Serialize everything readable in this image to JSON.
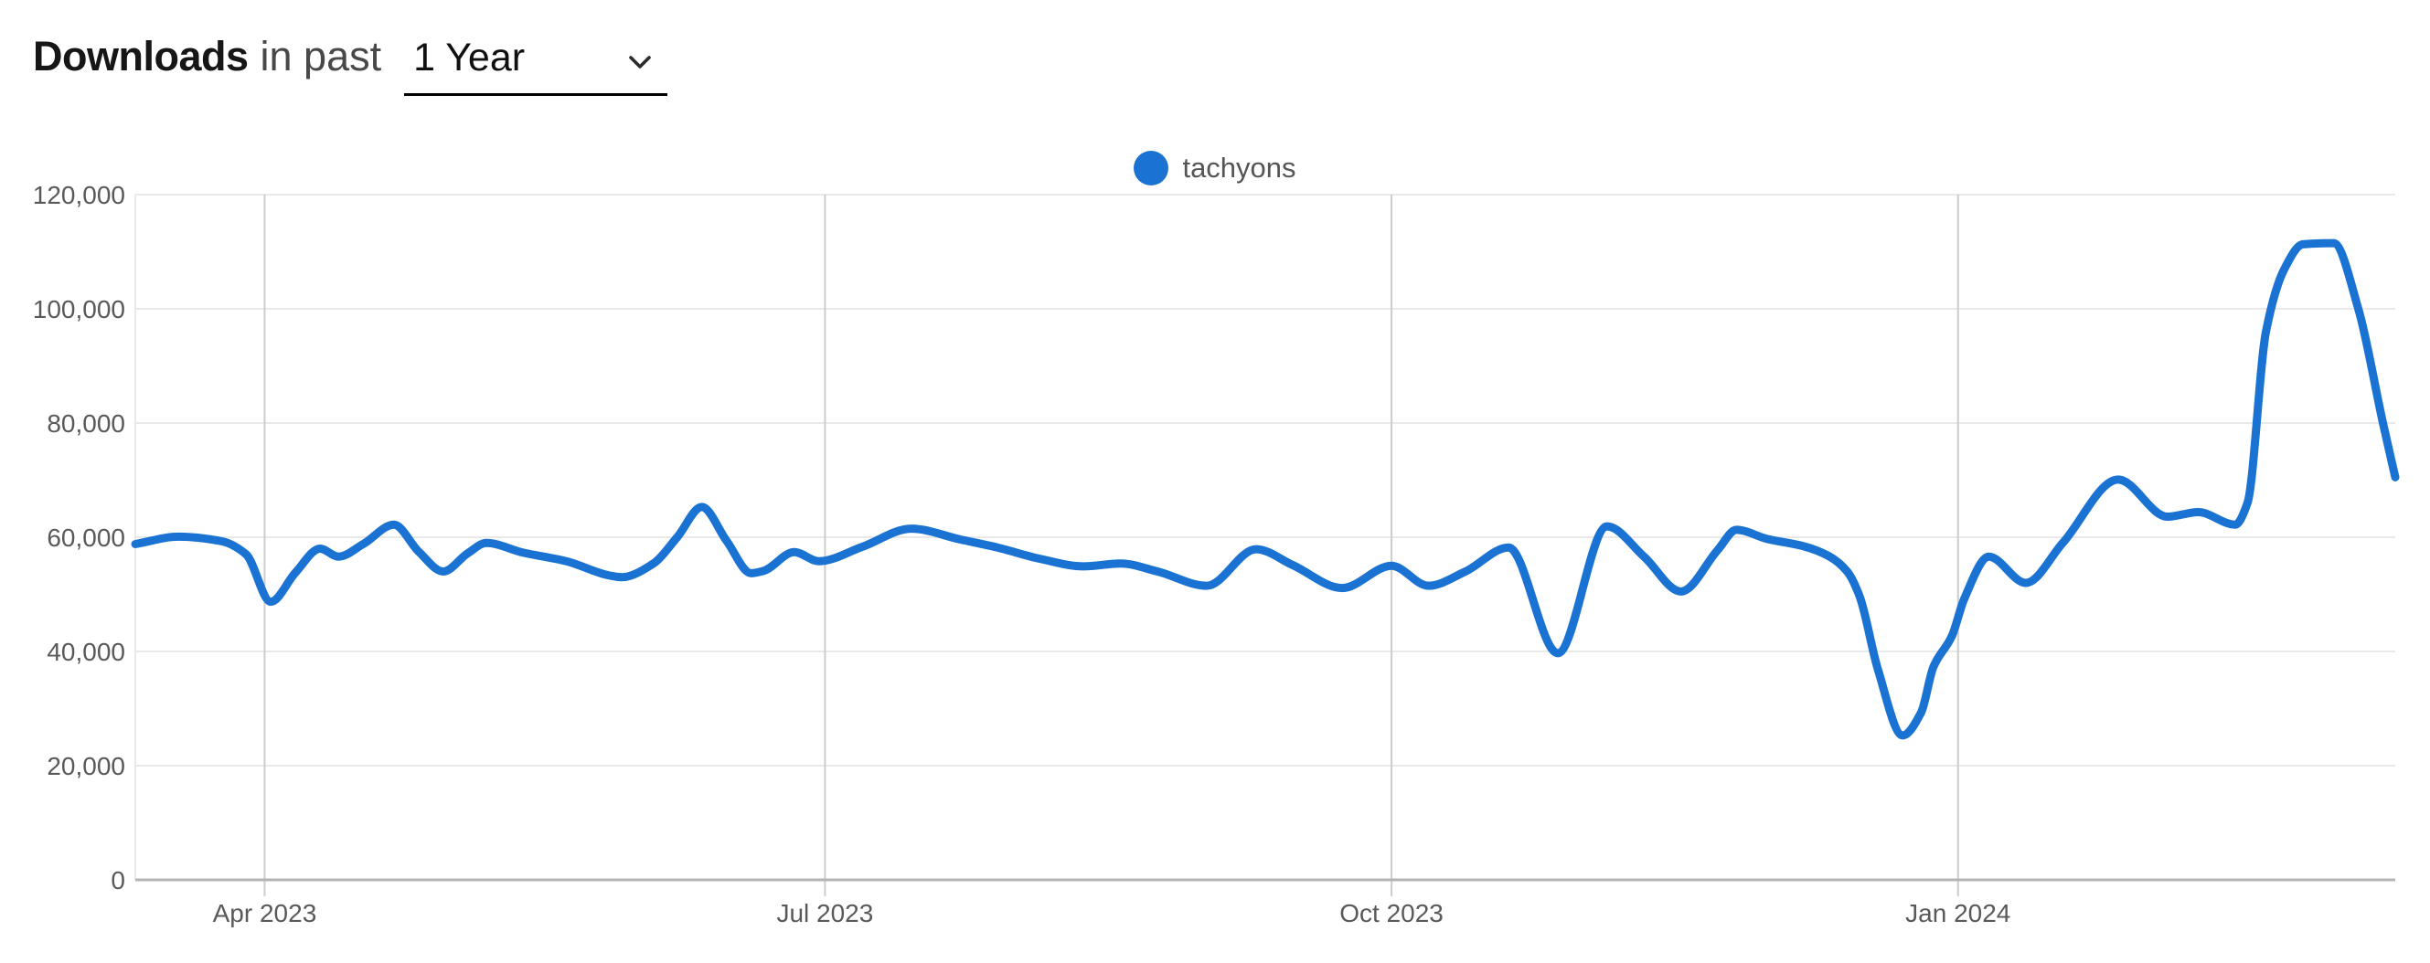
{
  "header": {
    "title_bold": "Downloads",
    "title_rest": "in past",
    "period_dropdown": {
      "value": "1 Year"
    }
  },
  "legend": {
    "series": [
      {
        "label": "tachyons",
        "color": "#1a73d3"
      }
    ]
  },
  "chart_data": {
    "type": "line",
    "title": "Downloads in past 1 Year",
    "series_name": "tachyons",
    "line_color": "#1a73d3",
    "grid": true,
    "legend_position": "top-center",
    "ylim": [
      0,
      120000
    ],
    "y_ticks": [
      0,
      20000,
      40000,
      60000,
      80000,
      100000,
      120000
    ],
    "y_tick_labels": [
      "0",
      "20,000",
      "40,000",
      "60,000",
      "80,000",
      "100,000",
      "120,000"
    ],
    "x_axis": {
      "start_date": "2023-03-11",
      "end_date": "2024-03-12",
      "span_days": 367,
      "ticks": [
        {
          "label": "Apr 2023",
          "day": 21
        },
        {
          "label": "Jul 2023",
          "day": 112
        },
        {
          "label": "Oct 2023",
          "day": 204
        },
        {
          "label": "Jan 2024",
          "day": 296
        }
      ]
    },
    "points": [
      [
        0,
        58800
      ],
      [
        7,
        60100
      ],
      [
        14,
        59300
      ],
      [
        18,
        57000
      ],
      [
        22,
        48700
      ],
      [
        26,
        53800
      ],
      [
        30,
        58000
      ],
      [
        33,
        56600
      ],
      [
        37,
        58800
      ],
      [
        42,
        62200
      ],
      [
        46,
        57500
      ],
      [
        50,
        54000
      ],
      [
        54,
        57200
      ],
      [
        57,
        59000
      ],
      [
        63,
        57300
      ],
      [
        70,
        55800
      ],
      [
        77,
        53300
      ],
      [
        79,
        53000
      ],
      [
        84,
        55300
      ],
      [
        88,
        60000
      ],
      [
        92,
        65300
      ],
      [
        96,
        59400
      ],
      [
        100,
        53700
      ],
      [
        102,
        54100
      ],
      [
        107,
        57400
      ],
      [
        111,
        55800
      ],
      [
        118,
        58300
      ],
      [
        126,
        61500
      ],
      [
        134,
        59600
      ],
      [
        140,
        58200
      ],
      [
        147,
        56200
      ],
      [
        154,
        54900
      ],
      [
        160,
        55400
      ],
      [
        166,
        54000
      ],
      [
        174,
        51500
      ],
      [
        182,
        57900
      ],
      [
        188,
        55100
      ],
      [
        196,
        51100
      ],
      [
        204,
        55000
      ],
      [
        210,
        51500
      ],
      [
        216,
        54000
      ],
      [
        223,
        58200
      ],
      [
        231,
        39700
      ],
      [
        239,
        61900
      ],
      [
        245,
        56600
      ],
      [
        251,
        50500
      ],
      [
        257,
        57800
      ],
      [
        260,
        61300
      ],
      [
        265,
        59700
      ],
      [
        271,
        58400
      ],
      [
        275,
        56700
      ],
      [
        278,
        54000
      ],
      [
        280,
        49700
      ],
      [
        283,
        36800
      ],
      [
        287,
        25300
      ],
      [
        290,
        29300
      ],
      [
        292,
        37300
      ],
      [
        295,
        42700
      ],
      [
        297,
        49200
      ],
      [
        301,
        56600
      ],
      [
        307,
        52000
      ],
      [
        313,
        59000
      ],
      [
        322,
        70100
      ],
      [
        330,
        63600
      ],
      [
        335,
        64400
      ],
      [
        341,
        62200
      ],
      [
        343,
        66000
      ],
      [
        346,
        96000
      ],
      [
        349,
        107000
      ],
      [
        352,
        111300
      ],
      [
        357,
        111500
      ],
      [
        361,
        100000
      ],
      [
        365,
        80000
      ],
      [
        367,
        70500
      ]
    ]
  }
}
